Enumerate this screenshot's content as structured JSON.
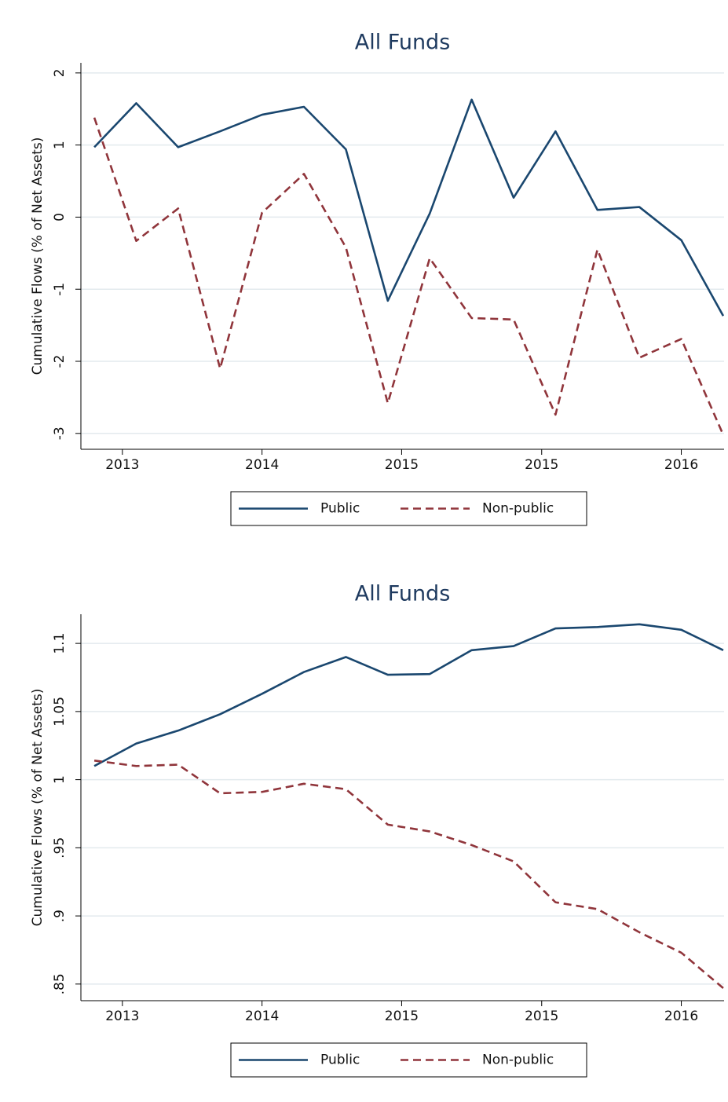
{
  "chart_data": [
    {
      "type": "line",
      "title": "All Funds",
      "y_label": "Cumulative Flows (% of Net Assets)",
      "x": [
        0,
        1,
        2,
        3,
        4,
        5,
        6,
        7,
        8,
        9,
        10,
        11,
        12,
        13,
        14,
        15
      ],
      "xlim": [
        -0.32,
        15.02
      ],
      "xticks": [
        {
          "value": 0.67,
          "label": "2013"
        },
        {
          "value": 4,
          "label": "2014"
        },
        {
          "value": 7.33,
          "label": "2015"
        },
        {
          "value": 10.67,
          "label": "2015"
        },
        {
          "value": 14,
          "label": "2016"
        }
      ],
      "ylim": [
        -3.22,
        2.14
      ],
      "yticks": [
        -3,
        -2,
        -1,
        0,
        1,
        2
      ],
      "grid": true,
      "series": [
        {
          "name": "Public",
          "color": "#1a476f",
          "line_style": "solid",
          "values": [
            0.97,
            1.58,
            0.97,
            1.19,
            1.42,
            1.53,
            0.94,
            -1.16,
            0.05,
            1.63,
            0.27,
            1.19,
            0.1,
            0.14,
            -0.32,
            -1.37
          ]
        },
        {
          "name": "Non-public",
          "color": "#90353b",
          "line_style": "dashed",
          "values": [
            1.38,
            -0.33,
            0.12,
            -2.1,
            0.06,
            0.6,
            -0.42,
            -2.58,
            -0.57,
            -1.4,
            -1.42,
            -2.74,
            -0.45,
            -1.95,
            -1.69,
            -3.02
          ]
        }
      ]
    },
    {
      "type": "line",
      "title": "All Funds",
      "y_label": "Cumulative Flows (% of Net Assets)",
      "x": [
        0,
        1,
        2,
        3,
        4,
        5,
        6,
        7,
        8,
        9,
        10,
        11,
        12,
        13,
        14,
        15
      ],
      "xlim": [
        -0.32,
        15.02
      ],
      "xticks": [
        {
          "value": 0.67,
          "label": "2013"
        },
        {
          "value": 4,
          "label": "2014"
        },
        {
          "value": 7.33,
          "label": "2015"
        },
        {
          "value": 10.67,
          "label": "2015"
        },
        {
          "value": 14,
          "label": "2016"
        }
      ],
      "ylim": [
        0.8378,
        1.1214
      ],
      "yticks": [
        {
          "value": 0.85,
          "label": ".85"
        },
        {
          "value": 0.9,
          "label": ".9"
        },
        {
          "value": 0.95,
          "label": ".95"
        },
        1,
        1.05,
        1.1
      ],
      "grid": true,
      "series": [
        {
          "name": "Public",
          "color": "#1a476f",
          "line_style": "solid",
          "values": [
            1.01,
            1.0265,
            1.036,
            1.048,
            1.063,
            1.079,
            1.09,
            1.077,
            1.0775,
            1.095,
            1.098,
            1.111,
            1.112,
            1.114,
            1.11,
            1.095
          ]
        },
        {
          "name": "Non-public",
          "color": "#90353b",
          "line_style": "dashed",
          "values": [
            1.014,
            1.01,
            1.011,
            0.99,
            0.991,
            0.997,
            0.993,
            0.967,
            0.962,
            0.952,
            0.94,
            0.91,
            0.905,
            0.888,
            0.873,
            0.847
          ]
        }
      ]
    }
  ]
}
